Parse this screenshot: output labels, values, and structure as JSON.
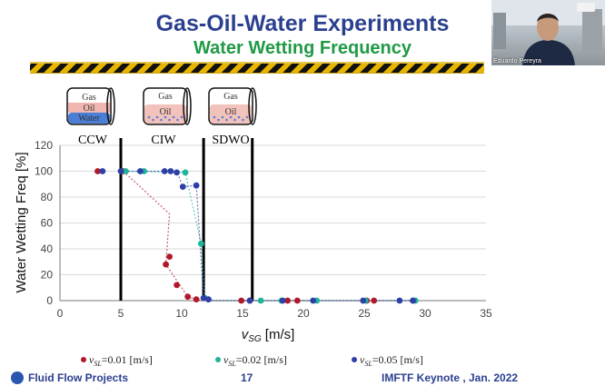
{
  "slide": {
    "title": "Gas-Oil-Water Experiments",
    "subtitle": "Water Wetting Frequency",
    "footer_left": "Fluid Flow Projects",
    "page_number": "17",
    "footer_right": "IMFTF Keynote , Jan. 2022"
  },
  "video": {
    "participant_name": "Eduardo Pereyra"
  },
  "regimes": [
    {
      "label": "CCW",
      "pipe_labels": [
        "Gas",
        "Oil",
        "Water"
      ]
    },
    {
      "label": "CIW",
      "pipe_labels": [
        "Gas",
        "Oil"
      ]
    },
    {
      "label": "SDWO",
      "pipe_labels": [
        "Gas",
        "Oil"
      ]
    }
  ],
  "chart_data": {
    "type": "scatter",
    "xlabel": "vSG [m/s]",
    "ylabel": "Water Wetting Freq [%]",
    "xlim": [
      0,
      35
    ],
    "ylim": [
      0,
      120
    ],
    "xticks": [
      0,
      5,
      10,
      15,
      20,
      25,
      30,
      35
    ],
    "yticks": [
      0,
      20,
      40,
      60,
      80,
      100,
      120
    ],
    "boundaries": [
      5,
      11.8,
      15.8
    ],
    "series": [
      {
        "name": "vSL=0.01 [m/s]",
        "color": "#b0192a",
        "points": [
          [
            3.1,
            100
          ],
          [
            5.2,
            100
          ],
          [
            8.7,
            28
          ],
          [
            9.0,
            34
          ],
          [
            9.6,
            12
          ],
          [
            10.5,
            3
          ],
          [
            11.2,
            1
          ],
          [
            14.9,
            0
          ],
          [
            15.6,
            0
          ],
          [
            18.7,
            0
          ],
          [
            19.5,
            0
          ],
          [
            25.2,
            0
          ],
          [
            25.8,
            0
          ],
          [
            29.0,
            0
          ]
        ],
        "trend": [
          [
            5.2,
            100
          ],
          [
            9.0,
            67
          ],
          [
            8.7,
            28
          ],
          [
            10.5,
            3
          ],
          [
            11.5,
            0
          ],
          [
            29,
            0
          ]
        ]
      },
      {
        "name": "vSL=0.02 [m/s]",
        "color": "#1fb39b",
        "points": [
          [
            5.4,
            100
          ],
          [
            6.9,
            100
          ],
          [
            10.3,
            99
          ],
          [
            11.6,
            44
          ],
          [
            11.9,
            2
          ],
          [
            12.2,
            1
          ],
          [
            16.5,
            0
          ],
          [
            18.2,
            0
          ],
          [
            21.1,
            0
          ],
          [
            25.1,
            0
          ],
          [
            29.2,
            0
          ]
        ],
        "trend": [
          [
            5.4,
            100
          ],
          [
            10.3,
            99
          ],
          [
            11.6,
            44
          ],
          [
            11.9,
            2
          ],
          [
            12.4,
            0
          ],
          [
            29.2,
            0
          ]
        ]
      },
      {
        "name": "vSL=0.05 [m/s]",
        "color": "#2e3fa6",
        "points": [
          [
            3.5,
            100
          ],
          [
            5.0,
            100
          ],
          [
            6.6,
            100
          ],
          [
            8.6,
            100
          ],
          [
            9.1,
            100
          ],
          [
            9.6,
            99
          ],
          [
            10.1,
            88
          ],
          [
            11.2,
            89
          ],
          [
            11.8,
            2
          ],
          [
            12.2,
            1
          ],
          [
            15.6,
            0
          ],
          [
            18.3,
            0
          ],
          [
            20.8,
            0
          ],
          [
            24.9,
            0
          ],
          [
            27.9,
            0
          ],
          [
            29.0,
            0
          ]
        ],
        "trend": [
          [
            5.0,
            100
          ],
          [
            9.6,
            100
          ],
          [
            10.1,
            88
          ],
          [
            11.2,
            89
          ],
          [
            11.8,
            2
          ],
          [
            12.5,
            0
          ],
          [
            29,
            0
          ]
        ]
      }
    ]
  }
}
